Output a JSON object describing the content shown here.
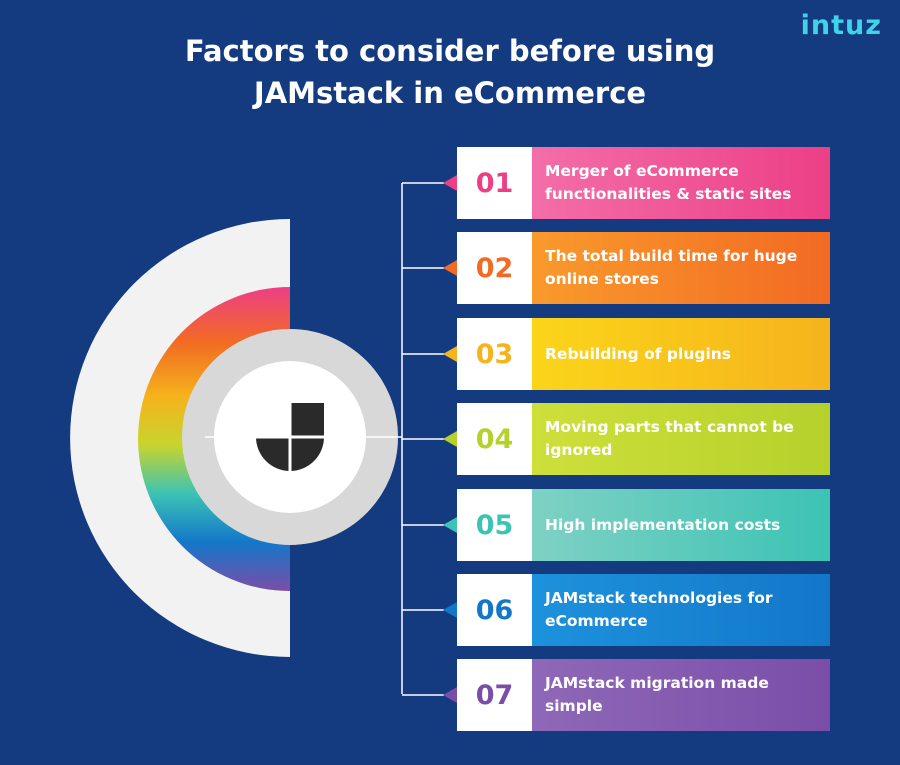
{
  "brand": {
    "logo_text": "intuz",
    "accent": "#3ed3e8"
  },
  "header": {
    "title_line1": "Factors to consider before using",
    "title_line2": "JAMstack in eCommerce"
  },
  "center_icon": "jamstack-logo-icon",
  "items": [
    {
      "num": "01",
      "text": "Merger of eCommerce functionalities & static sites",
      "color": "#ec3f86",
      "color2": "#f36ea8"
    },
    {
      "num": "02",
      "text": "The total build time for huge online stores",
      "color": "#f26a23",
      "color2": "#f99a2c"
    },
    {
      "num": "03",
      "text": "Rebuilding of plugins",
      "color": "#f5b31c",
      "color2": "#fbd51a"
    },
    {
      "num": "04",
      "text": "Moving parts that cannot be ignored",
      "color": "#b6d12c",
      "color2": "#cedf3a"
    },
    {
      "num": "05",
      "text": "High implementation costs",
      "color": "#3cc3b4",
      "color2": "#7ed1c4"
    },
    {
      "num": "06",
      "text": "JAMstack technologies for eCommerce",
      "color": "#1377c9",
      "color2": "#1d92dc"
    },
    {
      "num": "07",
      "text": "JAMstack migration made simple",
      "color": "#7a4ea8",
      "color2": "#8f68b8"
    }
  ]
}
